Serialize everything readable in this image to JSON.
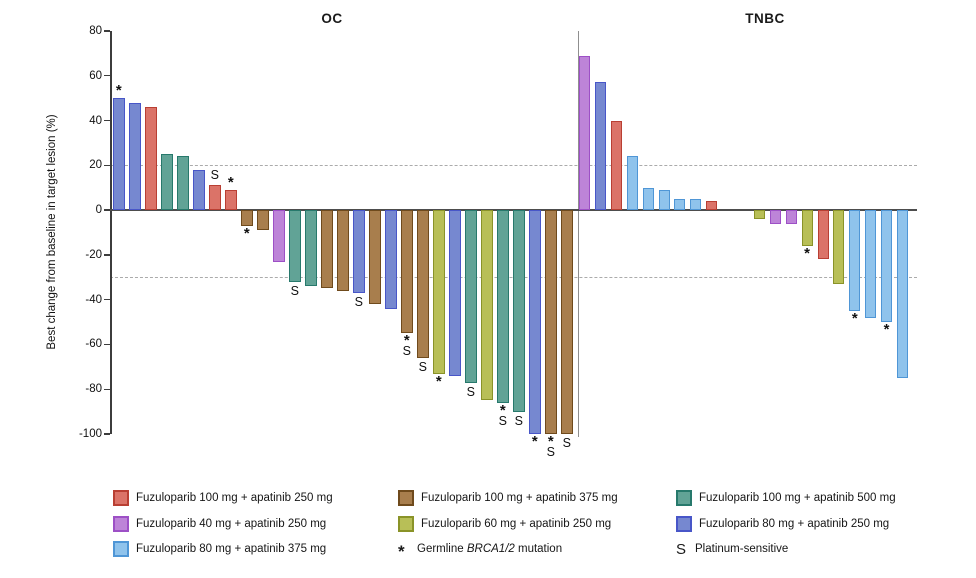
{
  "figure": {
    "y_axis_label": "Best change from baseline in target lesion (%)"
  },
  "treatments": {
    "fz100_ap250": {
      "label": "Fuzuloparib 100 mg + apatinib 250 mg",
      "fill": "#db7368",
      "border": "#b93f33"
    },
    "fz100_ap375": {
      "label": "Fuzuloparib 100 mg + apatinib 375 mg",
      "fill": "#a87e4d",
      "border": "#6f4a1c"
    },
    "fz100_ap500": {
      "label": "Fuzuloparib 100 mg + apatinib 500 mg",
      "fill": "#61a396",
      "border": "#27796c"
    },
    "fz40_ap250": {
      "label": "Fuzuloparib 40 mg + apatinib 250 mg",
      "fill": "#bd84d8",
      "border": "#9d50c6"
    },
    "fz60_ap250": {
      "label": "Fuzuloparib 60 mg + apatinib 250 mg",
      "fill": "#b8bf57",
      "border": "#8a9328"
    },
    "fz80_ap250": {
      "label": "Fuzuloparib 80 mg + apatinib 250 mg",
      "fill": "#7688d0",
      "border": "#4856c8"
    },
    "fz80_ap375": {
      "label": "Fuzuloparib 80 mg + apatinib 375 mg",
      "fill": "#8fc3ec",
      "border": "#4f96d6"
    }
  },
  "chart_data": {
    "type": "bar",
    "subtype": "waterfall",
    "ylabel": "Best change from baseline in target lesion (%)",
    "ylim": [
      -100,
      80
    ],
    "yticks": [
      80,
      60,
      40,
      20,
      0,
      -20,
      -40,
      -60,
      -80,
      -100
    ],
    "reference_lines": [
      20,
      -30
    ],
    "grid": false,
    "groups": [
      {
        "name": "OC",
        "bars": [
          {
            "value": 50,
            "treatment": "fz80_ap250",
            "marks": [
              "*"
            ]
          },
          {
            "value": 48,
            "treatment": "fz80_ap250",
            "marks": []
          },
          {
            "value": 46,
            "treatment": "fz100_ap250",
            "marks": []
          },
          {
            "value": 25,
            "treatment": "fz100_ap500",
            "marks": []
          },
          {
            "value": 24,
            "treatment": "fz100_ap500",
            "marks": []
          },
          {
            "value": 18,
            "treatment": "fz80_ap250",
            "marks": []
          },
          {
            "value": 11,
            "treatment": "fz100_ap250",
            "marks": [
              "S"
            ]
          },
          {
            "value": 9,
            "treatment": "fz100_ap250",
            "marks": [
              "*"
            ]
          },
          {
            "value": -7,
            "treatment": "fz100_ap375",
            "marks": [
              "*"
            ]
          },
          {
            "value": -9,
            "treatment": "fz100_ap375",
            "marks": []
          },
          {
            "value": -23,
            "treatment": "fz40_ap250",
            "marks": []
          },
          {
            "value": -32,
            "treatment": "fz100_ap500",
            "marks": [
              "S"
            ]
          },
          {
            "value": -34,
            "treatment": "fz100_ap500",
            "marks": []
          },
          {
            "value": -35,
            "treatment": "fz100_ap375",
            "marks": []
          },
          {
            "value": -36,
            "treatment": "fz100_ap375",
            "marks": []
          },
          {
            "value": -37,
            "treatment": "fz80_ap250",
            "marks": [
              "S"
            ]
          },
          {
            "value": -42,
            "treatment": "fz100_ap375",
            "marks": []
          },
          {
            "value": -44,
            "treatment": "fz80_ap250",
            "marks": []
          },
          {
            "value": -55,
            "treatment": "fz100_ap375",
            "marks": [
              "*",
              "S"
            ]
          },
          {
            "value": -66,
            "treatment": "fz100_ap375",
            "marks": [
              "S"
            ]
          },
          {
            "value": -73,
            "treatment": "fz60_ap250",
            "marks": [
              "*"
            ]
          },
          {
            "value": -74,
            "treatment": "fz80_ap250",
            "marks": []
          },
          {
            "value": -77,
            "treatment": "fz100_ap500",
            "marks": [
              "S"
            ]
          },
          {
            "value": -85,
            "treatment": "fz60_ap250",
            "marks": []
          },
          {
            "value": -86,
            "treatment": "fz100_ap500",
            "marks": [
              "*",
              "S"
            ]
          },
          {
            "value": -90,
            "treatment": "fz100_ap500",
            "marks": [
              "S"
            ]
          },
          {
            "value": -100,
            "treatment": "fz80_ap250",
            "marks": [
              "*"
            ]
          },
          {
            "value": -100,
            "treatment": "fz100_ap375",
            "marks": [
              "*",
              "S"
            ]
          },
          {
            "value": -100,
            "treatment": "fz100_ap375",
            "marks": [
              "S"
            ]
          }
        ]
      },
      {
        "name": "TNBC",
        "bars": [
          {
            "value": 69,
            "treatment": "fz40_ap250",
            "marks": []
          },
          {
            "value": 57,
            "treatment": "fz80_ap250",
            "marks": []
          },
          {
            "value": 40,
            "treatment": "fz100_ap250",
            "marks": []
          },
          {
            "value": 24,
            "treatment": "fz80_ap375",
            "marks": []
          },
          {
            "value": 10,
            "treatment": "fz80_ap375",
            "marks": []
          },
          {
            "value": 9,
            "treatment": "fz80_ap375",
            "marks": []
          },
          {
            "value": 5,
            "treatment": "fz80_ap375",
            "marks": []
          },
          {
            "value": 5,
            "treatment": "fz80_ap375",
            "marks": []
          },
          {
            "value": 4,
            "treatment": "fz100_ap250",
            "marks": []
          },
          {
            "value": 0,
            "treatment": "",
            "marks": []
          },
          {
            "value": 0,
            "treatment": "",
            "marks": []
          },
          {
            "value": -4,
            "treatment": "fz60_ap250",
            "marks": []
          },
          {
            "value": -6,
            "treatment": "fz40_ap250",
            "marks": []
          },
          {
            "value": -6,
            "treatment": "fz40_ap250",
            "marks": []
          },
          {
            "value": -16,
            "treatment": "fz60_ap250",
            "marks": [
              "*"
            ]
          },
          {
            "value": -22,
            "treatment": "fz100_ap250",
            "marks": []
          },
          {
            "value": -33,
            "treatment": "fz60_ap250",
            "marks": []
          },
          {
            "value": -45,
            "treatment": "fz80_ap375",
            "marks": [
              "*"
            ]
          },
          {
            "value": -48,
            "treatment": "fz80_ap375",
            "marks": []
          },
          {
            "value": -50,
            "treatment": "fz80_ap375",
            "marks": [
              "*"
            ]
          },
          {
            "value": -75,
            "treatment": "fz80_ap375",
            "marks": []
          }
        ]
      }
    ]
  },
  "legend": {
    "entries": [
      {
        "col": 0,
        "row": 0,
        "swatch": "fz100_ap250"
      },
      {
        "col": 1,
        "row": 0,
        "swatch": "fz100_ap375"
      },
      {
        "col": 2,
        "row": 0,
        "swatch": "fz100_ap500"
      },
      {
        "col": 0,
        "row": 1,
        "swatch": "fz40_ap250"
      },
      {
        "col": 1,
        "row": 1,
        "swatch": "fz60_ap250"
      },
      {
        "col": 2,
        "row": 1,
        "swatch": "fz80_ap250"
      },
      {
        "col": 0,
        "row": 2,
        "swatch": "fz80_ap375"
      },
      {
        "col": 1,
        "row": 2,
        "symbol": "*",
        "pre": "Germline ",
        "italic": "BRCA1/2",
        "post": " mutation"
      },
      {
        "col": 2,
        "row": 2,
        "symbol": "S",
        "pre": "Platinum-sensitive",
        "italic": "",
        "post": ""
      }
    ]
  }
}
